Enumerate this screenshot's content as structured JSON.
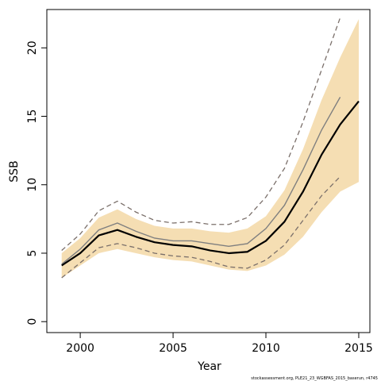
{
  "chart_data": {
    "type": "line",
    "title": "",
    "xlabel": "Year",
    "ylabel": "SSB",
    "xlim": [
      1998.2,
      2015.6
    ],
    "ylim": [
      -0.8,
      22.8
    ],
    "xticks": [
      2000,
      2005,
      2010,
      2015
    ],
    "yticks": [
      0,
      5,
      10,
      15,
      20
    ],
    "grid": false,
    "colors": {
      "band": "#f5deb3",
      "estimate": "#000000",
      "previous": "#7f7f7f",
      "previous_ci": "#7a6f6a"
    },
    "series": [
      {
        "role": "band",
        "x": [
          1999,
          2000,
          2001,
          2002,
          2003,
          2004,
          2005,
          2006,
          2007,
          2008,
          2009,
          2010,
          2011,
          2012,
          2013,
          2014,
          2015
        ],
        "lower": [
          3.2,
          4.1,
          5.0,
          5.3,
          5.0,
          4.7,
          4.5,
          4.4,
          4.1,
          3.8,
          3.7,
          4.1,
          4.9,
          6.2,
          8.0,
          9.5,
          10.2
        ],
        "upper": [
          5.0,
          6.1,
          7.6,
          8.2,
          7.5,
          7.0,
          6.8,
          6.8,
          6.6,
          6.5,
          6.8,
          7.7,
          9.6,
          12.6,
          16.2,
          19.3,
          22.1
        ]
      },
      {
        "role": "estimate",
        "x": [
          1999,
          2000,
          2001,
          2002,
          2003,
          2004,
          2005,
          2006,
          2007,
          2008,
          2009,
          2010,
          2011,
          2012,
          2013,
          2014,
          2015
        ],
        "values": [
          4.1,
          5.0,
          6.3,
          6.7,
          6.2,
          5.8,
          5.6,
          5.5,
          5.2,
          5.0,
          5.1,
          5.9,
          7.3,
          9.5,
          12.2,
          14.4,
          16.1
        ]
      },
      {
        "role": "previous",
        "x": [
          1999,
          2000,
          2001,
          2002,
          2003,
          2004,
          2005,
          2006,
          2007,
          2008,
          2009,
          2010,
          2011,
          2012,
          2013,
          2014
        ],
        "values": [
          4.2,
          5.3,
          6.7,
          7.2,
          6.6,
          6.1,
          5.9,
          5.9,
          5.7,
          5.5,
          5.7,
          6.8,
          8.5,
          11.1,
          14.0,
          16.4
        ]
      },
      {
        "role": "previous_upper",
        "x": [
          1999,
          2000,
          2001,
          2002,
          2003,
          2004,
          2005,
          2006,
          2007,
          2008,
          2009,
          2010,
          2011,
          2012,
          2013,
          2014
        ],
        "values": [
          5.2,
          6.4,
          8.1,
          8.8,
          8.0,
          7.4,
          7.2,
          7.3,
          7.1,
          7.1,
          7.6,
          9.1,
          11.2,
          14.6,
          18.4,
          22.2
        ]
      },
      {
        "role": "previous_lower",
        "x": [
          1999,
          2000,
          2001,
          2002,
          2003,
          2004,
          2005,
          2006,
          2007,
          2008,
          2009,
          2010,
          2011,
          2012,
          2013,
          2014
        ],
        "values": [
          3.2,
          4.3,
          5.4,
          5.7,
          5.4,
          5.0,
          4.8,
          4.7,
          4.4,
          4.0,
          3.9,
          4.5,
          5.6,
          7.4,
          9.2,
          10.6
        ]
      }
    ],
    "footnote": "stockassessment.org,  PLE21_23_WGBFAS_2015_baserun,  r4745"
  }
}
